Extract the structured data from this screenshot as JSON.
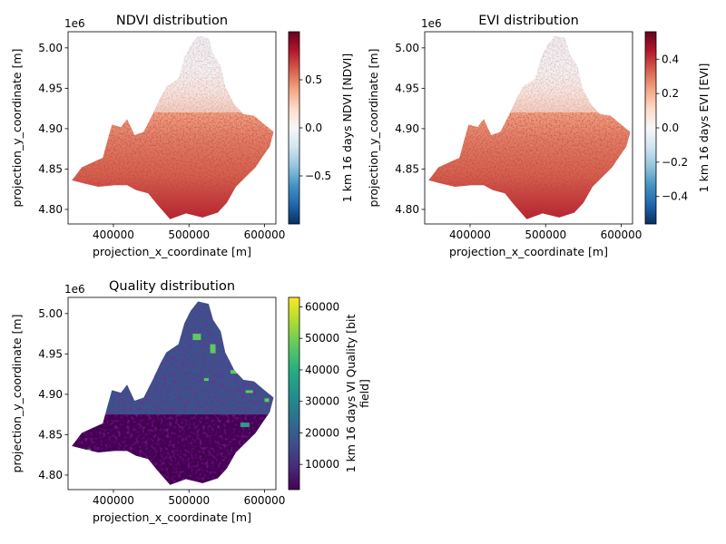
{
  "chart_data": [
    {
      "type": "heatmap",
      "title": "NDVI distribution",
      "xlabel": "projection_x_coordinate [m]",
      "ylabel": "projection_y_coordinate [m]",
      "y_offset_label": "1e6",
      "xlim": [
        340000,
        615000
      ],
      "ylim": [
        4782000,
        5020000
      ],
      "xticks": [
        400000,
        500000,
        600000
      ],
      "yticks": [
        4.8,
        4.85,
        4.9,
        4.95,
        5.0
      ],
      "colormap": "RdBu_r",
      "colorbar": {
        "label": "1 km 16 days NDVI [NDVI]",
        "range": [
          -1.0,
          1.0
        ],
        "ticks": [
          -0.5,
          0.0,
          0.5
        ],
        "tick_labels": [
          "−0.5",
          "0.0",
          "0.5"
        ]
      },
      "grid": false
    },
    {
      "type": "heatmap",
      "title": "EVI distribution",
      "xlabel": "projection_x_coordinate [m]",
      "ylabel": "projection_y_coordinate [m]",
      "y_offset_label": "1e6",
      "xlim": [
        340000,
        615000
      ],
      "ylim": [
        4782000,
        5020000
      ],
      "xticks": [
        400000,
        500000,
        600000
      ],
      "yticks": [
        4.8,
        4.85,
        4.9,
        4.95,
        5.0
      ],
      "colormap": "RdBu_r",
      "colorbar": {
        "label": "1 km 16 days EVI [EVI]",
        "range": [
          -0.56,
          0.56
        ],
        "ticks": [
          -0.4,
          -0.2,
          0.0,
          0.2,
          0.4
        ],
        "tick_labels": [
          "−0.4",
          "−0.2",
          "0.0",
          "0.2",
          "0.4"
        ]
      },
      "grid": false
    },
    {
      "type": "heatmap",
      "title": "Quality distribution",
      "xlabel": "projection_x_coordinate [m]",
      "ylabel": "projection_y_coordinate [m]",
      "y_offset_label": "1e6",
      "xlim": [
        340000,
        615000
      ],
      "ylim": [
        4782000,
        5020000
      ],
      "xticks": [
        400000,
        500000,
        600000
      ],
      "yticks": [
        4.8,
        4.85,
        4.9,
        4.95,
        5.0
      ],
      "colormap": "viridis",
      "colorbar": {
        "label_lines": [
          "1 km 16 days VI Quality [bit",
          "field]"
        ],
        "range": [
          2000,
          63000
        ],
        "ticks": [
          10000,
          20000,
          30000,
          40000,
          50000,
          60000
        ],
        "tick_labels": [
          "10000",
          "20000",
          "30000",
          "40000",
          "50000",
          "60000"
        ]
      },
      "grid": false
    }
  ]
}
